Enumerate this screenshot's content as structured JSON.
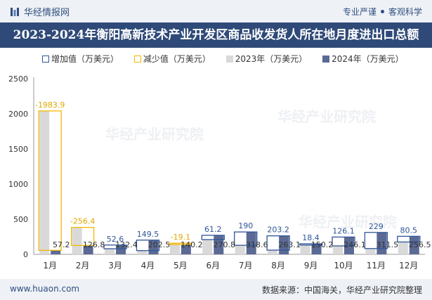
{
  "header": {
    "brand": "华经情报网",
    "slogan_left": "专业严谨",
    "slogan_right": "客观科学"
  },
  "watermark": "华经产业研究院",
  "footer": {
    "url": "www.huaon.com",
    "source": "数据来源：中国海关，华经产业研究院整理"
  },
  "colors": {
    "increase": "#2f5597",
    "decrease": "#f5b800",
    "y2023": "#d9d9d9",
    "y2024": "#5b6a94",
    "titlebar": "#2f4a78"
  },
  "chart_data": {
    "type": "bar",
    "title": "2023-2024年衡阳高新技术产业开发区商品收发货人所在地月度进出口总额",
    "categories": [
      "1月",
      "2月",
      "3月",
      "4月",
      "5月",
      "6月",
      "7月",
      "8月",
      "9月",
      "10月",
      "11月",
      "12月"
    ],
    "series": [
      {
        "name": "2023年（万美元）",
        "values": [
          2041.1,
          383.2,
          79.8,
          53.0,
          159.3,
          209.6,
          128.6,
          59.9,
          131.8,
          120.0,
          82.5,
          176.0
        ]
      },
      {
        "name": "2024年（万美元）",
        "values": [
          57.2,
          126.8,
          132.4,
          202.5,
          140.2,
          270.8,
          318.6,
          263.1,
          150.2,
          246.1,
          311.5,
          256.5
        ]
      }
    ],
    "change": {
      "increase_name": "增加值（万美元）",
      "decrease_name": "减少值（万美元）",
      "values": [
        -1983.9,
        -256.4,
        52.6,
        149.5,
        -19.1,
        61.2,
        190,
        203.2,
        18.4,
        126.1,
        229,
        80.5
      ],
      "labels": [
        "-1983.9",
        "-256.4",
        "52.6",
        "149.5",
        "-19.1",
        "61.2",
        "190",
        "203.2",
        "18.4",
        "126.1",
        "229",
        "80.5"
      ]
    },
    "value_labels_2024": [
      "57.2",
      "126.8",
      "132.4",
      "202.5",
      "140.2",
      "270.8",
      "318.6",
      "263.1",
      "150.2",
      "246.1",
      "311.5",
      "256.5"
    ],
    "yticks": [
      "0",
      "500",
      "1000",
      "1500",
      "2000",
      "2500"
    ],
    "ylim": [
      0,
      2500
    ],
    "legend_position": "top",
    "grid": false
  }
}
